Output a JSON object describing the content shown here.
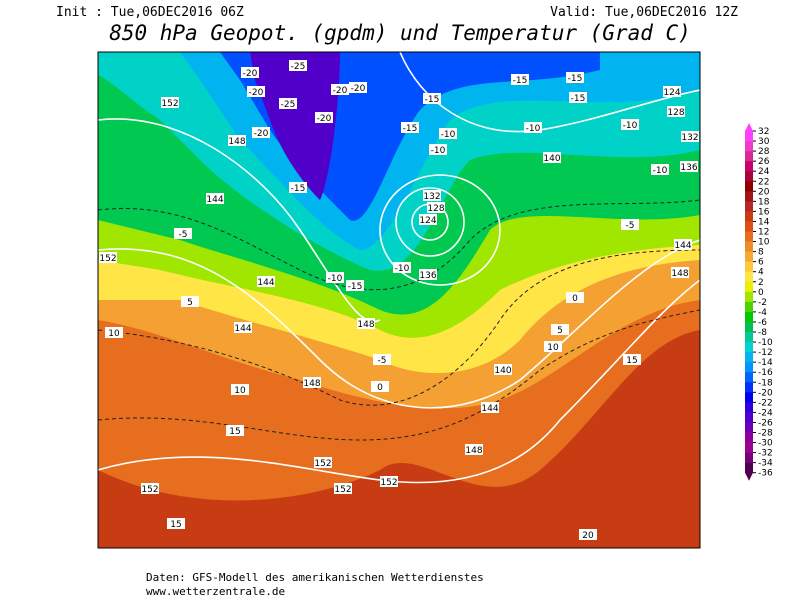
{
  "header": {
    "init": "Init : Tue,06DEC2016 06Z",
    "valid": "Valid: Tue,06DEC2016 12Z",
    "title": "850 hPa Geopot. (gpdm) und Temperatur (Grad C)"
  },
  "map": {
    "labels": [
      "-25",
      "-20",
      "-20",
      "-25",
      "-20",
      "-20",
      "-20",
      "-20",
      "-15",
      "-15",
      "-10",
      "-10",
      "-15",
      "-15",
      "-15",
      "-10",
      "-10",
      "-10",
      "-5",
      "-5",
      "-15",
      "-10",
      "-15",
      "-10",
      "-5",
      "0",
      "5",
      "10",
      "10",
      "15",
      "15",
      "20",
      "10",
      "15",
      "5",
      "0",
      "152",
      "148",
      "144",
      "144",
      "144",
      "148",
      "148",
      "136",
      "132",
      "128",
      "124",
      "140",
      "144",
      "148",
      "152",
      "152",
      "152",
      "152",
      "152",
      "140",
      "136",
      "132",
      "128",
      "124",
      "144",
      "148"
    ]
  },
  "colorbar": {
    "ticks": [
      32,
      30,
      28,
      26,
      24,
      22,
      20,
      18,
      16,
      14,
      12,
      10,
      8,
      6,
      4,
      2,
      0,
      -2,
      -4,
      -6,
      -8,
      -10,
      -12,
      -14,
      -16,
      -18,
      -20,
      -22,
      -24,
      -26,
      -28,
      -30,
      -32,
      -34,
      -36
    ],
    "colors": [
      "#ff40ff",
      "#f03cc8",
      "#dc2896",
      "#c8006e",
      "#aa003c",
      "#8c0000",
      "#a01414",
      "#b42828",
      "#c83c14",
      "#dc5014",
      "#e66e1e",
      "#f08c28",
      "#f5aa32",
      "#ffc83c",
      "#ffe646",
      "#e6f000",
      "#a0e600",
      "#50d200",
      "#00c800",
      "#00be50",
      "#00c896",
      "#00d2d2",
      "#00b4f0",
      "#0096ff",
      "#0064ff",
      "#0032ff",
      "#0000f0",
      "#3200dc",
      "#5000c8",
      "#6e00b4",
      "#8c00a0",
      "#a0008c",
      "#780078",
      "#500050"
    ]
  },
  "footer": [
    "Daten: GFS-Modell des amerikanischen Wetterdienstes",
    "www.wetterzentrale.de"
  ]
}
